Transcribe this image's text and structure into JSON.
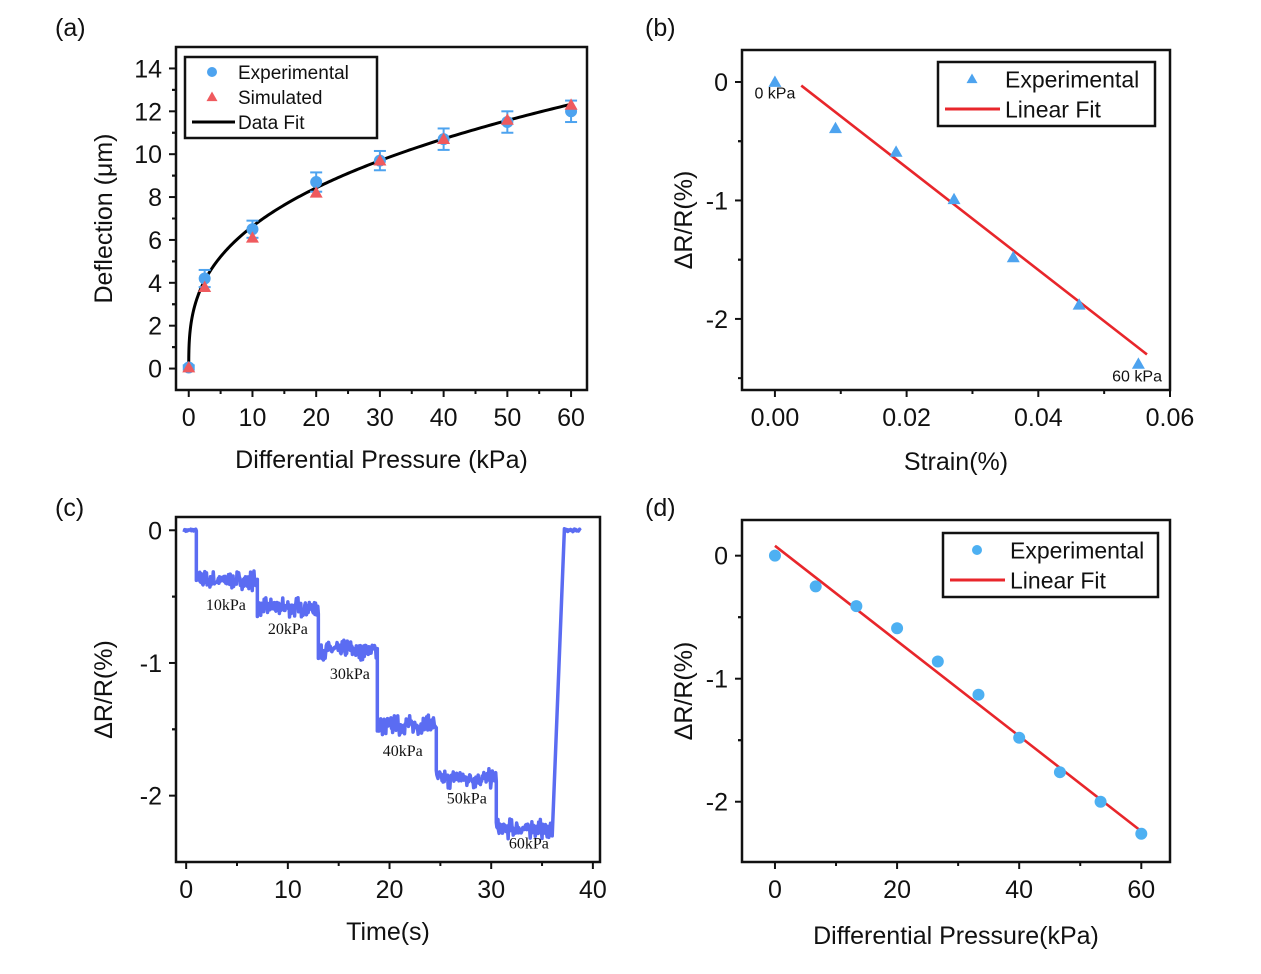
{
  "chart_data": [
    {
      "panel_label": "(a)",
      "type": "scatter",
      "xlabel": "Differential Pressure (kPa)",
      "ylabel": "Deflection (μm)",
      "xlim": [
        -2,
        62.5
      ],
      "ylim": [
        -1,
        15
      ],
      "xticks": [
        0,
        10,
        20,
        30,
        40,
        50,
        60
      ],
      "yticks": [
        0,
        2,
        4,
        6,
        8,
        10,
        12,
        14
      ],
      "legend": "top-left",
      "series": [
        {
          "name": "Experimental",
          "marker": "circle",
          "color": "#4da3ef",
          "x": [
            0,
            2.5,
            10,
            20,
            30,
            40,
            50,
            60
          ],
          "y": [
            0.05,
            4.2,
            6.5,
            8.7,
            9.7,
            10.7,
            11.5,
            12.0
          ],
          "error": [
            0.1,
            0.4,
            0.4,
            0.45,
            0.45,
            0.5,
            0.5,
            0.5
          ]
        },
        {
          "name": "Simulated",
          "marker": "triangle",
          "color": "#ef5a5e",
          "x": [
            0,
            2.5,
            10,
            20,
            30,
            40,
            50,
            60
          ],
          "y": [
            0.05,
            3.8,
            6.1,
            8.2,
            9.7,
            10.7,
            11.6,
            12.3
          ]
        },
        {
          "name": "Data Fit",
          "type": "line",
          "color": "#000000",
          "fit": {
            "a": 2.99,
            "b": 0.346,
            "xrange": [
              0,
              60
            ]
          }
        }
      ]
    },
    {
      "panel_label": "(b)",
      "type": "scatter",
      "xlabel": "Strain(%)",
      "ylabel": "ΔR/R(%)",
      "xlim": [
        -0.005,
        0.06
      ],
      "ylim": [
        -2.6,
        0.27
      ],
      "xticks": [
        0,
        0.02,
        0.04,
        0.06
      ],
      "xtick_labels": [
        "0.00",
        "0.02",
        "0.04",
        "0.06"
      ],
      "yticks": [
        0,
        -1,
        -2
      ],
      "legend": "top-right",
      "annotations": [
        {
          "text": "0 kPa",
          "x": 0,
          "y": -0.14
        },
        {
          "text": "60 kPa",
          "x": 0.055,
          "y": -2.53
        }
      ],
      "series": [
        {
          "name": "Experimental",
          "marker": "triangle",
          "color": "#4da3ef",
          "x": [
            0,
            0.0092,
            0.0184,
            0.0272,
            0.0362,
            0.0462,
            0.0552
          ],
          "y": [
            0,
            -0.39,
            -0.59,
            -0.99,
            -1.48,
            -1.88,
            -2.38
          ]
        },
        {
          "name": "Linear Fit",
          "type": "line",
          "color": "#e8262b",
          "x": [
            0.004,
            0.0565
          ],
          "y": [
            -0.03,
            -2.3
          ]
        }
      ]
    },
    {
      "panel_label": "(c)",
      "type": "line",
      "xlabel": "Time(s)",
      "ylabel": "ΔR/R(%)",
      "xlim": [
        -1,
        40.7
      ],
      "ylim": [
        -2.5,
        0.1
      ],
      "xticks": [
        0,
        10,
        20,
        30,
        40
      ],
      "yticks": [
        0,
        -1,
        -2
      ],
      "color": "#5b6cf2",
      "steps": [
        {
          "t_start": -0.2,
          "t_end": 1.0,
          "level": 0
        },
        {
          "t_start": 1.0,
          "t_end": 7.0,
          "level": -0.38
        },
        {
          "t_start": 7.0,
          "t_end": 13.0,
          "level": -0.58
        },
        {
          "t_start": 13.0,
          "t_end": 18.8,
          "level": -0.9
        },
        {
          "t_start": 18.8,
          "t_end": 24.6,
          "level": -1.47
        },
        {
          "t_start": 24.6,
          "t_end": 30.5,
          "level": -1.87
        },
        {
          "t_start": 30.5,
          "t_end": 36.0,
          "level": -2.25
        },
        {
          "t_start": 37.2,
          "t_end": 38.8,
          "level": 0
        }
      ],
      "annotations": [
        {
          "text": "10kPa",
          "x": 3.9,
          "y": -0.6
        },
        {
          "text": "20kPa",
          "x": 10.0,
          "y": -0.78
        },
        {
          "text": "30kPa",
          "x": 16.1,
          "y": -1.12
        },
        {
          "text": "40kPa",
          "x": 21.3,
          "y": -1.7
        },
        {
          "text": "50kPa",
          "x": 27.6,
          "y": -2.06
        },
        {
          "text": "60kPa",
          "x": 33.7,
          "y": -2.4
        }
      ]
    },
    {
      "panel_label": "(d)",
      "type": "scatter",
      "xlabel": "Differential Pressure(kPa)",
      "ylabel": "ΔR/R(%)",
      "xlim": [
        -5.4,
        64.7
      ],
      "ylim": [
        -2.49,
        0.29
      ],
      "xticks": [
        0,
        20,
        40,
        60
      ],
      "yticks": [
        0,
        -1,
        -2
      ],
      "legend": "top-right",
      "series": [
        {
          "name": "Experimental",
          "marker": "circle",
          "color": "#4db0f2",
          "x": [
            0,
            6.67,
            13.33,
            20,
            26.67,
            33.33,
            40,
            46.67,
            53.33,
            60
          ],
          "y": [
            0,
            -0.25,
            -0.41,
            -0.59,
            -0.86,
            -1.13,
            -1.48,
            -1.76,
            -2.0,
            -2.26
          ]
        },
        {
          "name": "Linear Fit",
          "type": "line",
          "color": "#e8262b",
          "x": [
            0,
            60
          ],
          "y": [
            0.08,
            -2.24
          ]
        }
      ]
    }
  ]
}
